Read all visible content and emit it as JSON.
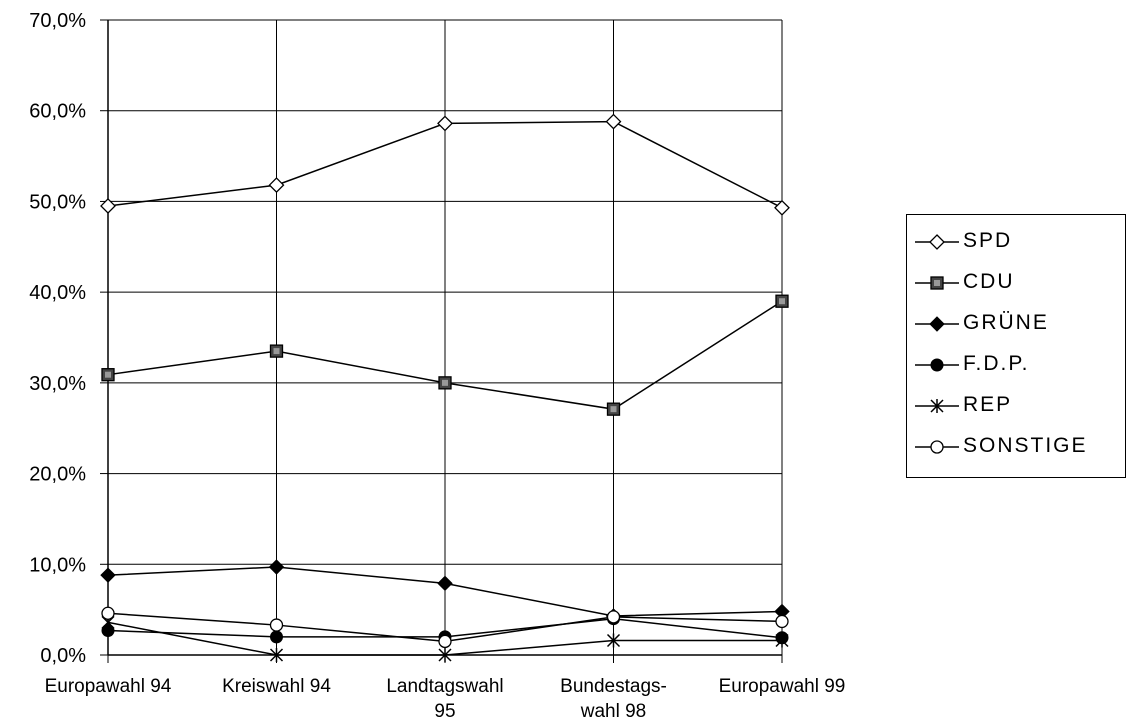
{
  "chart_data": {
    "type": "line",
    "categories": [
      "Europawahl 94",
      "Kreiswahl 94",
      "Landtagswahl 95",
      "Bundestags-wahl 98",
      "Europawahl 99"
    ],
    "category_label_lines": [
      [
        "Europawahl 94"
      ],
      [
        "Kreiswahl 94"
      ],
      [
        "Landtagswahl",
        "95"
      ],
      [
        "Bundestags-",
        "wahl 98"
      ],
      [
        "Europawahl 99"
      ]
    ],
    "y_ticks": [
      "0,0%",
      "10,0%",
      "20,0%",
      "30,0%",
      "40,0%",
      "50,0%",
      "60,0%",
      "70,0%"
    ],
    "ylim": [
      0,
      70
    ],
    "grid": true,
    "legend_position": "right",
    "series": [
      {
        "name": "SPD",
        "marker": "diamond-open",
        "values": [
          49.5,
          51.8,
          58.6,
          58.8,
          49.3
        ]
      },
      {
        "name": "CDU",
        "marker": "square-filled",
        "values": [
          30.9,
          33.5,
          30.0,
          27.1,
          39.0
        ]
      },
      {
        "name": "GRÜNE",
        "marker": "diamond-filled",
        "values": [
          8.8,
          9.7,
          7.9,
          4.3,
          4.8
        ]
      },
      {
        "name": "F.D.P.",
        "marker": "circle-filled",
        "values": [
          2.7,
          2.0,
          2.0,
          4.0,
          1.9
        ]
      },
      {
        "name": "REP",
        "marker": "asterisk",
        "values": [
          3.6,
          0.0,
          0.0,
          1.6,
          1.6
        ]
      },
      {
        "name": "SONSTIGE",
        "marker": "circle-open",
        "values": [
          4.6,
          3.3,
          1.5,
          4.2,
          3.7
        ]
      }
    ]
  }
}
